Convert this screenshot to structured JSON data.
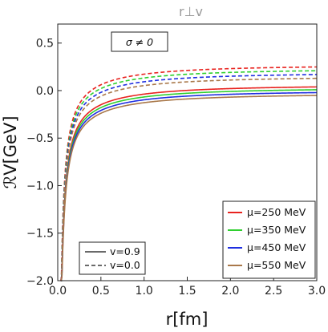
{
  "chart_data": {
    "type": "line",
    "title": "r⊥v",
    "xlabel": "r[fm]",
    "ylabel": "ℛV[GeV]",
    "xlim": [
      0.0,
      3.0
    ],
    "ylim": [
      -2.0,
      0.7
    ],
    "x_ticks": [
      "0.0",
      "0.5",
      "1.0",
      "1.5",
      "2.0",
      "2.5",
      "3.0"
    ],
    "y_ticks": [
      "-2.0",
      "-1.5",
      "-1.0",
      "-0.5",
      "0.0",
      "0.5"
    ],
    "grid": false,
    "annotation": "σ ≠ 0",
    "legend_mu": {
      "placement": "bottom-right",
      "entries": [
        {
          "label": "μ=250 MeV",
          "color": "#e8231f"
        },
        {
          "label": "μ=350 MeV",
          "color": "#2fcf2f"
        },
        {
          "label": "μ=450 MeV",
          "color": "#1f2fe0"
        },
        {
          "label": "μ=550 MeV",
          "color": "#a9784a"
        }
      ]
    },
    "legend_v": {
      "placement": "bottom-left",
      "entries": [
        {
          "label": "v=0.9",
          "style": "solid"
        },
        {
          "label": "v=0.0",
          "style": "dashed"
        }
      ]
    },
    "series": [
      {
        "mu": 250,
        "v": 0.9,
        "color": "#e8231f",
        "style": "solid",
        "asymptote": 0.07
      },
      {
        "mu": 350,
        "v": 0.9,
        "color": "#2fcf2f",
        "style": "solid",
        "asymptote": 0.04
      },
      {
        "mu": 450,
        "v": 0.9,
        "color": "#1f2fe0",
        "style": "solid",
        "asymptote": 0.01
      },
      {
        "mu": 550,
        "v": 0.9,
        "color": "#a9784a",
        "style": "solid",
        "asymptote": -0.02
      },
      {
        "mu": 250,
        "v": 0.0,
        "color": "#e8231f",
        "style": "dashed",
        "asymptote": 0.28
      },
      {
        "mu": 350,
        "v": 0.0,
        "color": "#2fcf2f",
        "style": "dashed",
        "asymptote": 0.24
      },
      {
        "mu": 450,
        "v": 0.0,
        "color": "#1f2fe0",
        "style": "dashed",
        "asymptote": 0.2
      },
      {
        "mu": 550,
        "v": 0.0,
        "color": "#a9784a",
        "style": "dashed",
        "asymptote": 0.16
      }
    ]
  }
}
